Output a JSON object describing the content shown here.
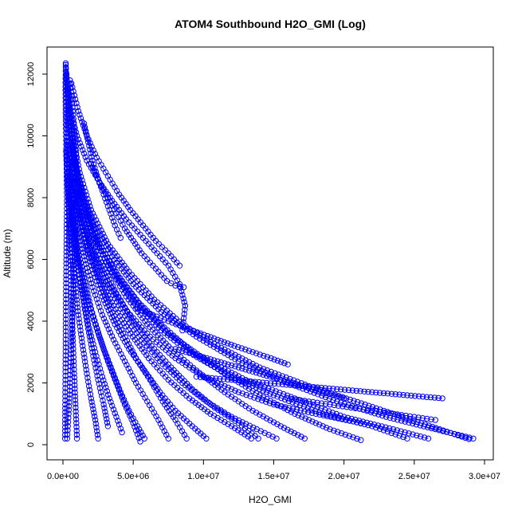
{
  "chart_data": {
    "type": "scatter",
    "title": "ATOM4 Southbound H2O_GMI (Log)",
    "xlabel": "H2O_GMI",
    "ylabel": "Altitude (m)",
    "xlim": [
      0,
      30000000
    ],
    "ylim": [
      0,
      12400
    ],
    "x_ticks": [
      0,
      5000000,
      10000000,
      15000000,
      20000000,
      25000000,
      30000000
    ],
    "x_tick_labels": [
      "0.0e+00",
      "5.0e+06",
      "1.0e+07",
      "1.5e+07",
      "2.0e+07",
      "2.5e+07",
      "3.0e+07"
    ],
    "y_ticks": [
      0,
      2000,
      4000,
      6000,
      8000,
      10000,
      12000
    ],
    "y_tick_labels": [
      "0",
      "2000",
      "4000",
      "6000",
      "8000",
      "10000",
      "12000"
    ],
    "grid": false,
    "legend": "none",
    "point_color": "#0000ff",
    "marker": "open-circle",
    "series": [
      {
        "x": [
          29200000,
          26500000,
          23000000,
          19500000,
          16000000,
          12500000,
          9500000,
          7000000,
          5000000,
          3500000,
          2200000,
          1400000,
          800000,
          400000,
          200000
        ],
        "y": [
          200,
          500,
          900,
          1400,
          2000,
          2700,
          3500,
          4300,
          5200,
          6100,
          7100,
          8100,
          9300,
          10800,
          12300
        ]
      },
      {
        "x": [
          28900000,
          25500000,
          21500000,
          17500000,
          14000000,
          11000000,
          8500000,
          6500000,
          4700000,
          3200000,
          2000000,
          1200000,
          600000,
          250000
        ],
        "y": [
          180,
          700,
          1300,
          1900,
          2500,
          3200,
          3900,
          4700,
          5600,
          6500,
          7600,
          8800,
          10200,
          12000
        ]
      },
      {
        "x": [
          26000000,
          23500000,
          20000000,
          16500000,
          13000000,
          10000000,
          7500000,
          5500000,
          3800000,
          2500000,
          1500000,
          800000,
          300000
        ],
        "y": [
          200,
          500,
          900,
          1500,
          2100,
          2800,
          3600,
          4500,
          5500,
          6600,
          7900,
          9300,
          11500
        ]
      },
      {
        "x": [
          24500000,
          22000000,
          18500000,
          15000000,
          12000000,
          9300000,
          7000000,
          5100000,
          3500000,
          2200000,
          1300000,
          650000
        ],
        "y": [
          200,
          600,
          1000,
          1600,
          2200,
          2900,
          3700,
          4600,
          5600,
          6700,
          8000,
          9600
        ]
      },
      {
        "x": [
          21200000,
          19000000,
          16500000,
          14000000,
          11500000,
          9200000,
          7200000,
          5400000,
          3900000,
          2600000,
          1600000,
          900000,
          400000
        ],
        "y": [
          150,
          500,
          1000,
          1600,
          2300,
          3000,
          3800,
          4600,
          5500,
          6500,
          7600,
          8900,
          10400
        ]
      },
      {
        "x": [
          21200000,
          18000000,
          15000000,
          12500000,
          10000000,
          8000000,
          6200000,
          4600000,
          3300000,
          2200000,
          1300000,
          650000
        ],
        "y": [
          700,
          1000,
          1300,
          1700,
          2200,
          2800,
          3500,
          4300,
          5200,
          6200,
          7400,
          8800
        ]
      },
      {
        "x": [
          17200000,
          15500000,
          13500000,
          11500000,
          9500000,
          7700000,
          6000000,
          4500000,
          3200000,
          2100000,
          1200000,
          600000
        ],
        "y": [
          200,
          600,
          1100,
          1700,
          2400,
          3100,
          3900,
          4800,
          5800,
          6900,
          8200,
          9700
        ]
      },
      {
        "x": [
          15200000,
          13800000,
          12000000,
          10200000,
          8500000,
          6900000,
          5400000,
          4100000,
          2900000,
          1900000,
          1100000,
          500000
        ],
        "y": [
          200,
          500,
          900,
          1400,
          2000,
          2700,
          3500,
          4400,
          5400,
          6500,
          7800,
          9300
        ]
      },
      {
        "x": [
          13900000,
          12500000,
          10800000,
          9200000,
          7700000,
          6300000,
          5000000,
          3800000,
          2700000,
          1800000,
          1000000,
          450000
        ],
        "y": [
          200,
          700,
          1200,
          1800,
          2500,
          3200,
          4000,
          4900,
          5900,
          7000,
          8300,
          9800
        ]
      },
      {
        "x": [
          13400000,
          12000000,
          10500000,
          9000000,
          7500000,
          6100000,
          4800000,
          3600000,
          2500000,
          1600000,
          900000
        ],
        "y": [
          200,
          600,
          1000,
          1500,
          2100,
          2800,
          3600,
          4500,
          5500,
          6700,
          8100
        ]
      },
      {
        "x": [
          10200000,
          9200000,
          8000000,
          6900000,
          5800000,
          4700000,
          3700000,
          2800000,
          2000000,
          1300000,
          700000,
          300000
        ],
        "y": [
          200,
          600,
          1100,
          1700,
          2400,
          3100,
          3900,
          4800,
          5800,
          6900,
          8200,
          9800
        ]
      },
      {
        "x": [
          8800000,
          8000000,
          7100000,
          6200000,
          5200000,
          4300000,
          3400000,
          2600000,
          1800000,
          1200000,
          600000
        ],
        "y": [
          200,
          800,
          1400,
          2100,
          2800,
          3600,
          4400,
          5300,
          6300,
          7400,
          8700
        ]
      },
      {
        "x": [
          8500000,
          8700000,
          8300000,
          7500000,
          6500000,
          5500000,
          4500000,
          3500000,
          2600000,
          1700000,
          1000000,
          400000
        ],
        "y": [
          3700,
          4500,
          5200,
          5800,
          6300,
          6800,
          7300,
          7900,
          8500,
          9200,
          10000,
          11000
        ]
      },
      {
        "x": [
          8300000,
          7500000,
          6600000,
          5700000,
          4800000,
          4000000,
          3200000,
          2400000,
          1700000,
          1100000,
          600000
        ],
        "y": [
          5800,
          6200,
          6600,
          7100,
          7600,
          8100,
          8700,
          9300,
          10000,
          10800,
          11700
        ]
      },
      {
        "x": [
          7500000,
          6800000,
          6000000,
          5200000,
          4400000,
          3600000,
          2800000,
          2100000,
          1500000,
          900000,
          450000
        ],
        "y": [
          200,
          800,
          1400,
          2000,
          2700,
          3400,
          4200,
          5100,
          6100,
          7200,
          8500
        ]
      },
      {
        "x": [
          5800000,
          5300000,
          4700000,
          4100000,
          3500000,
          2900000,
          2300000,
          1700000,
          1200000,
          750000,
          350000
        ],
        "y": [
          200,
          600,
          1100,
          1700,
          2400,
          3100,
          3900,
          4800,
          5800,
          7000,
          8400
        ]
      },
      {
        "x": [
          5500000,
          5000000,
          4400000,
          3800000,
          3200000,
          2600000,
          2000000,
          1500000,
          1000000,
          600000
        ],
        "y": [
          100,
          700,
          1300,
          2000,
          2700,
          3500,
          4400,
          5400,
          6500,
          7800
        ]
      },
      {
        "x": [
          4200000,
          3800000,
          3300000,
          2800000,
          2300000,
          1800000,
          1400000,
          1000000,
          650000,
          350000
        ],
        "y": [
          400,
          900,
          1500,
          2200,
          3000,
          3900,
          4900,
          6000,
          7300,
          8800
        ]
      },
      {
        "x": [
          2500000,
          2300000,
          2000000,
          1700000,
          1400000,
          1100000,
          850000,
          600000,
          400000,
          220000
        ],
        "y": [
          200,
          800,
          1500,
          2300,
          3200,
          4200,
          5300,
          6500,
          7900,
          9500
        ]
      },
      {
        "x": [
          3200000,
          2900000,
          2500000,
          2100000,
          1700000,
          1300000,
          950000,
          650000,
          400000
        ],
        "y": [
          600,
          1300,
          2100,
          3000,
          4000,
          5100,
          6300,
          7700,
          9200
        ]
      },
      {
        "x": [
          1000000,
          900000,
          800000,
          700000,
          600000,
          500000,
          400000,
          320000,
          250000,
          200000
        ],
        "y": [
          200,
          1200,
          2300,
          3500,
          4800,
          6200,
          7700,
          9200,
          10700,
          12100
        ]
      },
      {
        "x": [
          300000,
          400000,
          500000,
          600000,
          700000,
          800000,
          900000,
          1000000,
          900000,
          700000,
          500000
        ],
        "y": [
          200,
          1000,
          2000,
          3200,
          4500,
          5800,
          7200,
          8600,
          9800,
          10800,
          11800
        ]
      },
      {
        "x": [
          150000,
          160000,
          180000,
          200000,
          220000,
          250000,
          280000,
          250000,
          200000,
          180000,
          200000
        ],
        "y": [
          200,
          1300,
          2500,
          3800,
          5100,
          6500,
          7900,
          9200,
          10500,
          11600,
          12350
        ]
      },
      {
        "x": [
          1500000,
          1800000,
          2100000,
          2500000,
          2900000,
          3300000,
          3700000,
          4100000
        ],
        "y": [
          10400,
          9800,
          9200,
          8600,
          8100,
          7600,
          7100,
          6700
        ]
      },
      {
        "x": [
          2000000,
          2600000,
          3200000,
          3800000,
          4400000,
          5000000,
          5600000,
          6200000,
          6800000,
          7400000,
          8000000,
          8600000
        ],
        "y": [
          9100,
          8500,
          8000,
          7500,
          7000,
          6600,
          6200,
          5900,
          5600,
          5300,
          5150,
          5100
        ]
      },
      {
        "x": [
          16000000,
          14800000,
          13500000,
          12200000,
          11000000,
          9800000,
          8600000,
          7500000,
          6400000,
          5300000
        ],
        "y": [
          2600,
          2800,
          3000,
          3200,
          3400,
          3600,
          3800,
          4000,
          4200,
          4400
        ]
      },
      {
        "x": [
          20000000,
          18500000,
          17000000,
          15500000,
          14000000,
          12500000,
          11000000,
          9500000,
          8000000
        ],
        "y": [
          1500,
          1700,
          1900,
          2100,
          2300,
          2500,
          2700,
          2900,
          3100
        ]
      },
      {
        "x": [
          26500000,
          25000000,
          23500000,
          22000000,
          20500000,
          19000000,
          17500000,
          16000000
        ],
        "y": [
          800,
          900,
          1000,
          1100,
          1200,
          1300,
          1400,
          1500
        ]
      },
      {
        "x": [
          27000000,
          24500000,
          22000000,
          19500000,
          17000000,
          14500000,
          12000000,
          9500000
        ],
        "y": [
          1500,
          1600,
          1700,
          1800,
          1900,
          2000,
          2100,
          2200
        ]
      }
    ]
  }
}
